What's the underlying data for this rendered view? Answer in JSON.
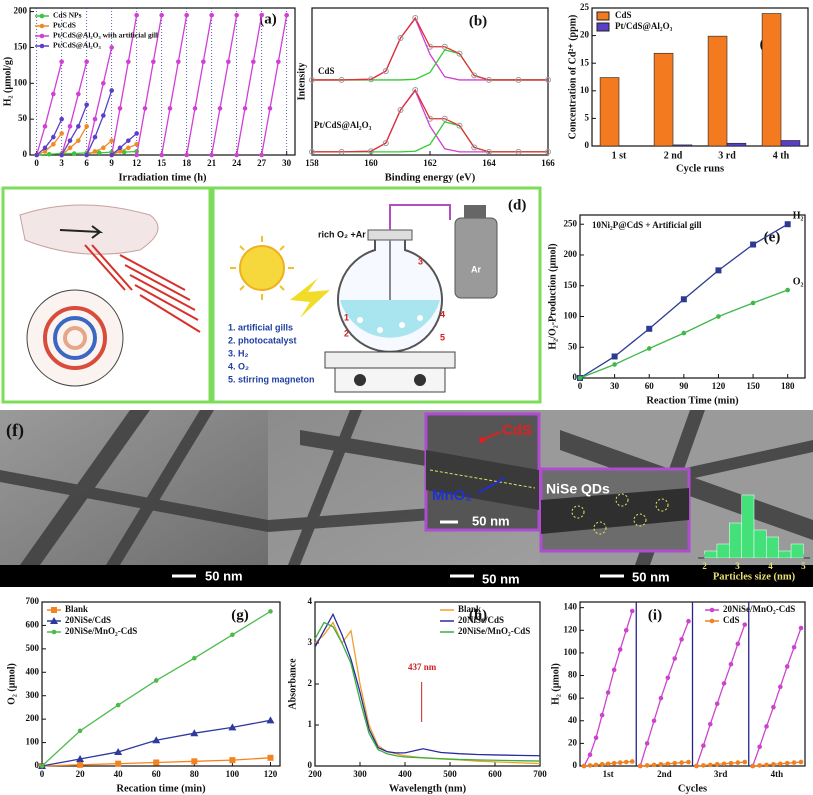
{
  "chart_data": [
    {
      "type": "line",
      "panel_label": "(a)",
      "xlabel": "Irradiation time (h)",
      "ylabel": "H₂ (μmol/g)",
      "xlim": [
        -0.8,
        31
      ],
      "ylim": [
        0,
        205
      ],
      "xticks": [
        0,
        3,
        6,
        9,
        12,
        15,
        18,
        21,
        24,
        27,
        30
      ],
      "yticks": [
        0,
        50,
        100,
        150,
        200
      ],
      "xgrid": "dotted",
      "legend": "upper left",
      "series": [
        {
          "name": "CdS NPs",
          "color": "#3cc43c",
          "marker": "circle",
          "x": [
            0,
            1.5,
            3,
            4.5,
            6,
            7.5,
            9,
            10.5,
            12
          ],
          "values": [
            0,
            1,
            2,
            2,
            3,
            3,
            4,
            4,
            5
          ]
        },
        {
          "name": "Pt/CdS",
          "color": "#f08a24",
          "marker": "circle",
          "x": [
            0,
            1,
            2,
            3,
            3,
            3,
            4,
            5,
            6,
            6,
            6,
            7,
            8,
            9,
            9,
            9,
            10,
            11,
            12
          ],
          "values": [
            0,
            5,
            15,
            30,
            null,
            0,
            10,
            20,
            40,
            null,
            0,
            5,
            10,
            20,
            null,
            0,
            5,
            10,
            15
          ]
        },
        {
          "name": "Pt/CdS@Al₂O₃ with artificial gill",
          "color": "#d23fd6",
          "marker": "circle",
          "x": [
            0,
            1,
            2,
            3,
            3,
            3,
            4,
            5,
            6,
            6,
            6,
            7,
            8,
            9,
            9,
            9,
            10,
            11,
            12,
            12,
            12,
            13,
            14,
            15,
            15,
            15,
            16,
            17,
            18,
            18,
            18,
            19,
            20,
            21,
            21,
            21,
            22,
            23,
            24,
            24,
            24,
            25,
            26,
            27,
            27,
            27,
            28,
            29,
            30
          ],
          "values": [
            0,
            40,
            85,
            130,
            null,
            0,
            40,
            85,
            130,
            null,
            0,
            50,
            100,
            150,
            null,
            0,
            65,
            130,
            195,
            null,
            0,
            65,
            130,
            195,
            null,
            0,
            65,
            130,
            195,
            null,
            0,
            65,
            130,
            195,
            null,
            0,
            65,
            130,
            195,
            null,
            0,
            65,
            130,
            195,
            null,
            0,
            65,
            130,
            195
          ]
        },
        {
          "name": "Pt/CdS@Al₂O₃",
          "color": "#5b3fc8",
          "marker": "circle",
          "x": [
            0,
            1,
            2,
            3,
            3,
            3,
            4,
            5,
            6,
            6,
            6,
            7,
            8,
            9,
            9,
            9,
            10,
            11,
            12
          ],
          "values": [
            0,
            10,
            25,
            50,
            null,
            0,
            20,
            40,
            70,
            null,
            0,
            25,
            55,
            90,
            null,
            0,
            10,
            20,
            30
          ]
        }
      ]
    },
    {
      "type": "line",
      "panel_label": "(b)",
      "xlabel": "Binding energy (eV)",
      "ylabel": "Intensity",
      "xlim": [
        158,
        166
      ],
      "ylim": [
        0,
        2.35
      ],
      "xticks": [
        158,
        160,
        162,
        164,
        166
      ],
      "annotations": [
        "CdS",
        "Pt/CdS@Al₂O₃"
      ],
      "x": [
        158,
        159,
        160,
        160.5,
        161,
        161.5,
        162,
        162.5,
        163,
        163.5,
        164,
        165,
        166
      ],
      "series": [
        {
          "color": "#d23fd6",
          "values": [
            1.2,
            1.2,
            1.21,
            1.34,
            1.87,
            2.18,
            1.61,
            1.25,
            1.2,
            1.2,
            1.2,
            1.2,
            1.2
          ]
        },
        {
          "color": "#33cc33",
          "values": [
            1.2,
            1.2,
            1.2,
            1.2,
            1.2,
            1.21,
            1.32,
            1.68,
            1.62,
            1.27,
            1.2,
            1.2,
            1.2
          ]
        },
        {
          "color": "#e03030",
          "marker": "open-circle",
          "values": [
            1.2,
            1.2,
            1.21,
            1.34,
            1.87,
            2.19,
            1.73,
            1.73,
            1.62,
            1.27,
            1.2,
            1.2,
            1.2
          ]
        },
        {
          "color": "#d23fd6",
          "values": [
            0.05,
            0.05,
            0.06,
            0.19,
            0.72,
            1.03,
            0.46,
            0.1,
            0.05,
            0.05,
            0.05,
            0.05,
            0.05
          ]
        },
        {
          "color": "#33cc33",
          "values": [
            0.05,
            0.05,
            0.05,
            0.05,
            0.05,
            0.06,
            0.17,
            0.53,
            0.47,
            0.12,
            0.05,
            0.05,
            0.05
          ]
        },
        {
          "color": "#e03030",
          "marker": "open-circle",
          "values": [
            0.05,
            0.05,
            0.06,
            0.19,
            0.72,
            1.04,
            0.58,
            0.58,
            0.47,
            0.12,
            0.05,
            0.05,
            0.05
          ]
        }
      ]
    },
    {
      "type": "bar",
      "panel_label": "(c)",
      "xlabel": "Cycle runs",
      "ylabel": "Concentration of Cd²⁺ (ppm)",
      "categories": [
        "1 st",
        "2 nd",
        "3 rd",
        "4 th"
      ],
      "ylim": [
        0,
        25
      ],
      "yticks": [
        0,
        5,
        10,
        15,
        20,
        25
      ],
      "legend": "upper left",
      "series": [
        {
          "name": "CdS",
          "color": "#f47a20",
          "values": [
            12.4,
            16.8,
            19.9,
            24
          ]
        },
        {
          "name": "Pt/CdS@Al₂O₃",
          "color": "#5a3ec8",
          "values": [
            0,
            0.2,
            0.5,
            1.0
          ]
        }
      ]
    },
    {
      "type": "line",
      "panel_label": "(e)",
      "xlabel": "Reaction Time (min)",
      "ylabel": "H₂/O₂-Production (μmol)",
      "annotations": [
        "10Ni₂P@CdS + Artificial gill"
      ],
      "x": [
        0,
        30,
        60,
        90,
        120,
        150,
        180
      ],
      "xlim": [
        0,
        195
      ],
      "ylim": [
        0,
        265
      ],
      "xticks": [
        0,
        30,
        60,
        90,
        120,
        150,
        180
      ],
      "yticks": [
        0,
        50,
        100,
        150,
        200,
        250
      ],
      "legend": "end",
      "series": [
        {
          "name": "H₂",
          "color": "#2d3a92",
          "marker": "square",
          "values": [
            0,
            35,
            80,
            128,
            175,
            217,
            250
          ]
        },
        {
          "name": "O₂",
          "color": "#3fb84a",
          "marker": "circle",
          "values": [
            0,
            22,
            48,
            73,
            100,
            122,
            143
          ]
        }
      ]
    },
    {
      "type": "histogram",
      "xlabel": "Particles size (nm)",
      "bins": [
        2,
        2.375,
        2.75,
        3.125,
        3.5,
        3.875,
        4.25,
        4.625,
        5
      ],
      "values": [
        1,
        2,
        5,
        9,
        4,
        3,
        1,
        2
      ],
      "xlim": [
        1.8,
        5.2
      ],
      "ylim": [
        0,
        10
      ],
      "xticks": [
        2,
        3,
        4,
        5
      ],
      "color": "#44e07a"
    },
    {
      "type": "line",
      "panel_label": "(g)",
      "xlabel": "Recation time (min)",
      "ylabel": "O₂ (μmol)",
      "x": [
        0,
        20,
        40,
        60,
        80,
        100,
        120
      ],
      "xlim": [
        0,
        125
      ],
      "ylim": [
        0,
        700
      ],
      "xticks": [
        0,
        20,
        40,
        60,
        80,
        100,
        120
      ],
      "yticks": [
        0,
        100,
        200,
        300,
        400,
        500,
        600,
        700
      ],
      "legend": "upper left",
      "series": [
        {
          "name": "Blank",
          "color": "#f58220",
          "marker": "square",
          "values": [
            0,
            5,
            10,
            15,
            20,
            25,
            35
          ]
        },
        {
          "name": "20NiSe/CdS",
          "color": "#2e3a9e",
          "marker": "triangle",
          "values": [
            0,
            30,
            60,
            110,
            140,
            165,
            195
          ]
        },
        {
          "name": "20NiSe/MnO₂-CdS",
          "color": "#4cbb4c",
          "marker": "circle",
          "values": [
            0,
            150,
            260,
            365,
            460,
            560,
            660
          ]
        }
      ]
    },
    {
      "type": "line",
      "panel_label": "(h)",
      "xlabel": "Wavelength (nm)",
      "ylabel": "Absorbance",
      "annotations": [
        "437 nm"
      ],
      "x": [
        200,
        220,
        240,
        260,
        280,
        300,
        320,
        340,
        360,
        380,
        400,
        440,
        480,
        520,
        560,
        600,
        650,
        700
      ],
      "xlim": [
        200,
        700
      ],
      "ylim": [
        0,
        4
      ],
      "xticks": [
        200,
        300,
        400,
        500,
        600,
        700
      ],
      "yticks": [
        0,
        1,
        2,
        3,
        4
      ],
      "legend": "upper right",
      "series": [
        {
          "name": "Blank",
          "color": "#f0a030",
          "values": [
            3.0,
            3.2,
            3.5,
            3.0,
            3.3,
            2.0,
            1.0,
            0.5,
            0.35,
            0.3,
            0.25,
            0.2,
            0.17,
            0.15,
            0.12,
            0.1,
            0.08,
            0.06
          ]
        },
        {
          "name": "20NiSe/CdS",
          "color": "#2a2aa0",
          "values": [
            2.9,
            3.3,
            3.7,
            3.2,
            2.6,
            1.8,
            0.9,
            0.45,
            0.35,
            0.32,
            0.32,
            0.42,
            0.33,
            0.3,
            0.28,
            0.27,
            0.26,
            0.25
          ]
        },
        {
          "name": "20NiSe/MnO₂-CdS",
          "color": "#3cb040",
          "values": [
            3.1,
            3.5,
            3.4,
            3.0,
            2.5,
            1.6,
            0.8,
            0.4,
            0.3,
            0.25,
            0.22,
            0.2,
            0.18,
            0.16,
            0.15,
            0.14,
            0.13,
            0.12
          ]
        }
      ]
    },
    {
      "type": "line",
      "panel_label": "(i)",
      "xlabel": "Cycles",
      "ylabel": "H₂ (μmol)",
      "categories": [
        "1st",
        "2nd",
        "3rd",
        "4th"
      ],
      "ylim": [
        0,
        145
      ],
      "yticks": [
        0,
        20,
        40,
        60,
        80,
        100,
        120,
        140
      ],
      "legend": "upper right",
      "series": [
        {
          "name": "20NiSe/MnO₂-CdS",
          "color": "#cc44cc",
          "marker": "circle",
          "values": [
            [
              0,
              10,
              25,
              45,
              65,
              85,
              103,
              120,
              137
            ],
            [
              0,
              20,
              40,
              60,
              78,
              95,
              112,
              128
            ],
            [
              0,
              18,
              37,
              55,
              73,
              90,
              108,
              125
            ],
            [
              0,
              17,
              35,
              52,
              70,
              88,
              105,
              122
            ]
          ]
        },
        {
          "name": "CdS",
          "color": "#f08020",
          "marker": "circle",
          "values": [
            [
              0,
              0.5,
              1,
              1.5,
              2,
              2.5,
              3,
              3.5,
              4
            ],
            [
              0,
              0.5,
              1,
              1.5,
              2,
              2.5,
              3,
              3.5
            ],
            [
              0,
              0.5,
              1,
              1.5,
              2,
              2.5,
              3,
              3.5
            ],
            [
              0,
              0.5,
              1,
              1.5,
              2,
              2.5,
              3,
              3.5
            ]
          ]
        }
      ]
    }
  ],
  "schematic": {
    "label": "(d)",
    "gas": "rich O₂ +Ar",
    "cylinder": "Ar",
    "numbers": [
      "1",
      "2",
      "3",
      "4",
      "5"
    ],
    "legend": [
      "1. artificial gills",
      "2. photocatalyst",
      "3. H₂",
      "4. O₂",
      "5. stirring magneton"
    ]
  },
  "tem": {
    "label": "(f)",
    "scale_bars": [
      "50 nm",
      "50 nm",
      "50 nm"
    ],
    "inset_scale": "50 nm",
    "cds": "CdS",
    "mno2": "MnO₂",
    "nise": "NiSe QDs"
  }
}
